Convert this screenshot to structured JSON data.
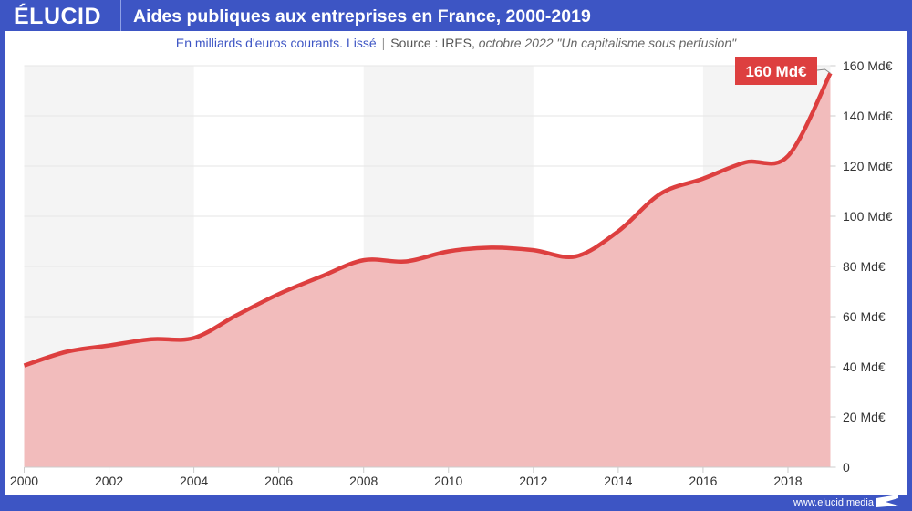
{
  "header": {
    "logo": "ÉLUCID",
    "title": "Aides publiques aux entreprises en France, 2000-2019"
  },
  "subtitle": {
    "unit": "En milliards d'euros courants. Lissé",
    "source_prefix": "Source : IRES, ",
    "source_italic": "octobre 2022 \"Un capitalisme sous perfusion\""
  },
  "footer": {
    "url": "www.elucid.media"
  },
  "chart_data": {
    "type": "area",
    "title": "Aides publiques aux entreprises en France, 2000-2019",
    "x": [
      2000,
      2001,
      2002,
      2003,
      2004,
      2005,
      2006,
      2007,
      2008,
      2009,
      2010,
      2011,
      2012,
      2013,
      2014,
      2015,
      2016,
      2017,
      2018,
      2019
    ],
    "series": [
      {
        "values": [
          40.5,
          46,
          48.5,
          51,
          51.5,
          60.5,
          69,
          76,
          82.5,
          82,
          86,
          87.5,
          86.5,
          84,
          94,
          109,
          115,
          121.5,
          124,
          157
        ]
      }
    ],
    "xlim": [
      2000,
      2019
    ],
    "ylim": [
      0,
      160
    ],
    "x_ticks": [
      "2000",
      "2002",
      "2004",
      "2006",
      "2008",
      "2010",
      "2012",
      "2014",
      "2016",
      "2018"
    ],
    "y_ticks": [
      "0",
      "20 Md€",
      "40 Md€",
      "60 Md€",
      "80 Md€",
      "100 Md€",
      "120 Md€",
      "140 Md€",
      "160 Md€"
    ],
    "y_axis_position": "right",
    "grid": true,
    "annotation": "160 Md€",
    "colors": {
      "line": "#dd3f3f",
      "fill": "#f2bcbc",
      "band": "#f4f4f4",
      "accent": "#3d55c4"
    }
  }
}
